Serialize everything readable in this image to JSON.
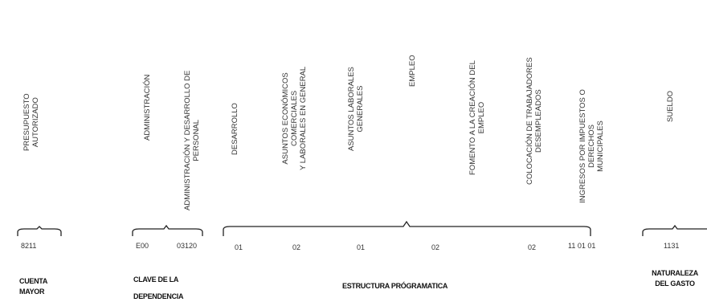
{
  "columns": {
    "presupuesto": "PRESUPUESTO\nAUTORIZADO",
    "administracion": "ADMINISTRACIÓN",
    "adm_desarrollo": "ADMINISTRACIÓN Y DESARROLLO DE\nPERSONAL",
    "desarrollo": "DESARROLLO",
    "asuntos_economicos": "ASUNTOS ECONÓMICOS\nCOMERCIALES\nY LABORALES EN GENERAL",
    "asuntos_laborales": "ASUNTOS LABORALES\nGENERALES",
    "empleo": "EMPLEO",
    "fomento": "FOMENTO A LA CREACIÓN DEL\nEMPLEO",
    "colocacion": "COLOCACIÓN DE TRABAJADORES\nDESEMPLEADOS",
    "ingresos": "INGRESOS POR IMPUESTOS O DERECHOS\nMUNICIPALES",
    "sueldo": "SUELDO"
  },
  "codes": {
    "c8211": "8211",
    "e00": "E00",
    "c03120": "03120",
    "c01a": "01",
    "c02a": "02",
    "c01b": "01",
    "c02b": "02",
    "c02c": "02",
    "c110101": "11 01 01",
    "c1131": "1131"
  },
  "labels": {
    "cuenta": "CUENTA\nMAYOR",
    "clave_1": "CLAVE DE LA",
    "clave_2": "DEPENDENCIA",
    "estructura": "ESTRUCTURA PRÓGRAMATICA",
    "naturaleza": "NATURALEZA\nDEL GASTO"
  }
}
